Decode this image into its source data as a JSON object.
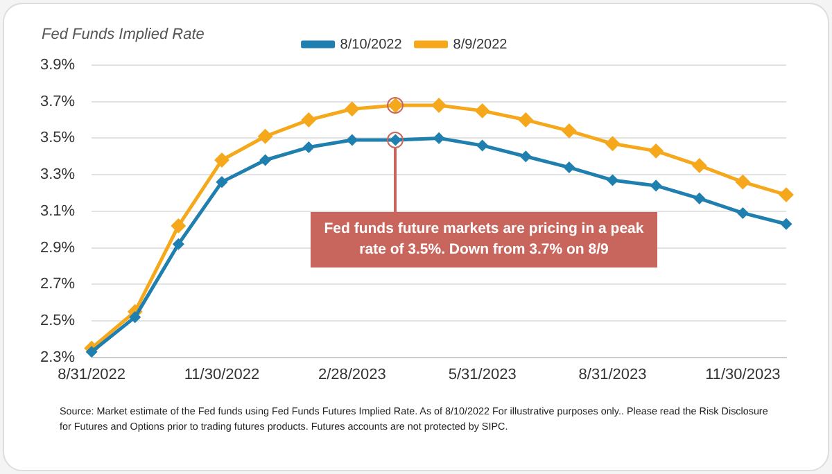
{
  "chart_data": {
    "type": "line",
    "title": "Fed Funds Implied Rate",
    "categories": [
      "8/31/2022",
      null,
      null,
      "11/30/2022",
      null,
      null,
      "2/28/2023",
      null,
      null,
      "5/31/2023",
      null,
      null,
      "8/31/2023",
      null,
      null,
      "11/30/2023",
      null
    ],
    "series": [
      {
        "name": "8/10/2022",
        "color": "#1f7fae",
        "values": [
          2.33,
          2.52,
          2.92,
          3.26,
          3.38,
          3.45,
          3.49,
          3.49,
          3.5,
          3.46,
          3.4,
          3.34,
          3.27,
          3.24,
          3.17,
          3.09,
          3.03
        ]
      },
      {
        "name": "8/9/2022",
        "color": "#f5a81c",
        "values": [
          2.35,
          2.55,
          3.02,
          3.38,
          3.51,
          3.6,
          3.66,
          3.68,
          3.68,
          3.65,
          3.6,
          3.54,
          3.47,
          3.43,
          3.35,
          3.26,
          3.19
        ]
      }
    ],
    "ylim": [
      2.3,
      3.9
    ],
    "yticks": [
      {
        "value": 2.3,
        "label": "2.3%"
      },
      {
        "value": 2.5,
        "label": "2.5%"
      },
      {
        "value": 2.7,
        "label": "2.7%"
      },
      {
        "value": 2.9,
        "label": "2.9%"
      },
      {
        "value": 3.1,
        "label": "3.1%"
      },
      {
        "value": 3.3,
        "label": "3.3%"
      },
      {
        "value": 3.5,
        "label": "3.5%"
      },
      {
        "value": 3.7,
        "label": "3.7%"
      },
      {
        "value": 3.9,
        "label": "3.9%"
      }
    ],
    "grid": "y",
    "legend": "top",
    "marker": "diamond",
    "line_style": "solid",
    "annotations": [
      "Fed funds future markets are pricing in a peak rate of 3.5%. Down from 3.7% on 8/9",
      "Source: Market estimate of the Fed funds using Fed Funds Futures Implied Rate. As of 8/10/2022 For illustrative  purposes only.. Please read the Risk Disclosure for Futures and Options prior to trading futures products. Futures accounts are not protected by SIPC."
    ]
  }
}
